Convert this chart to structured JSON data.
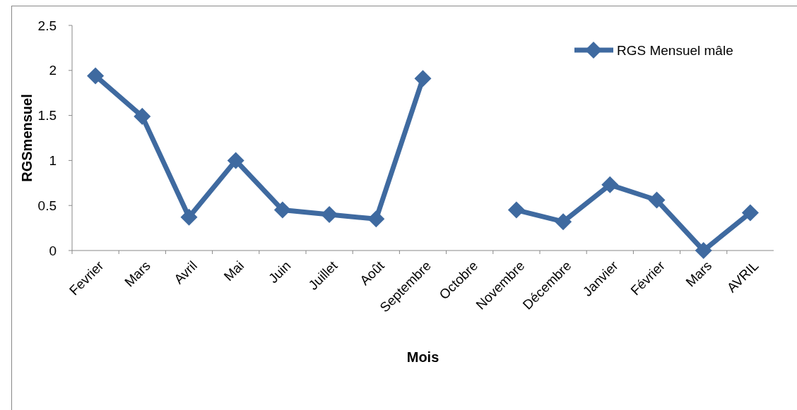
{
  "chart_data": {
    "type": "line",
    "xlabel": "Mois",
    "ylabel": "RGSmensuel",
    "categories": [
      "Fevrier",
      "Mars",
      "Avril",
      "Mai",
      "Juin",
      "Juillet",
      "Août",
      "Septembre",
      "Octobre",
      "Novembre",
      "Décembre",
      "Janvier",
      "Février",
      "Mars",
      "AVRIL"
    ],
    "series": [
      {
        "name": "RGS Mensuel mâle",
        "color": "#3f6aa0",
        "values": [
          1.94,
          1.49,
          0.37,
          1.0,
          0.45,
          0.4,
          0.35,
          1.91,
          null,
          0.45,
          0.32,
          0.73,
          0.56,
          0,
          0.42
        ]
      }
    ],
    "ylim": [
      0,
      2.5
    ],
    "yticks": [
      0,
      0.5,
      1,
      1.5,
      2,
      2.5
    ],
    "grid": false,
    "legend": "top right",
    "marker": "diamond",
    "line_style": "solid"
  }
}
